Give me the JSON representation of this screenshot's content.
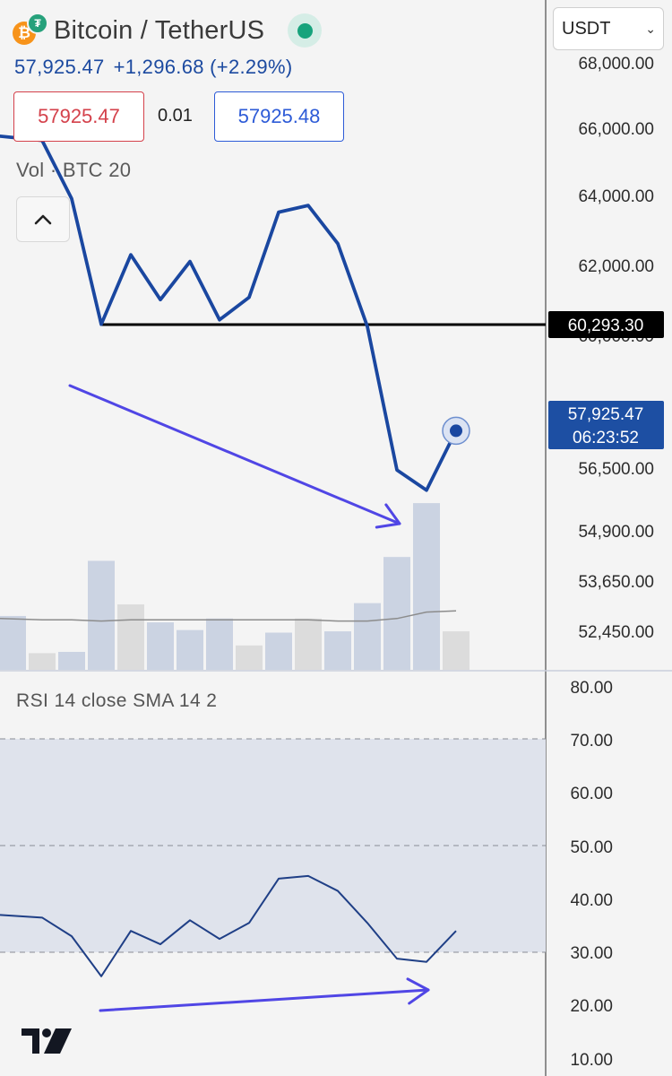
{
  "header": {
    "pair_title": "Bitcoin / TetherUS",
    "base_icon": "bitcoin-icon",
    "quote_icon": "tether-icon",
    "last_price": "57,925.47",
    "change": "+1,296.68 (+2.29%)",
    "sell_price": "57925.47",
    "spread": "0.01",
    "buy_price": "57925.48",
    "volume_label": "Vol · BTC 20",
    "currency_select": "USDT"
  },
  "rsi_label": "RSI 14 close SMA 14 2",
  "colors": {
    "price_line": "#1a47a0",
    "rsi_line": "#1f3f86",
    "arrow": "#5046e5",
    "volume_up": "#cbd3e2",
    "volume_down": "#dcdcdc",
    "rsi_band": "#dfe3ec",
    "sell": "#d4414b",
    "buy": "#2d5bd7"
  },
  "chart_data": [
    {
      "type": "line",
      "panel": "price",
      "y_ticks": [
        "68,000.00",
        "66,000.00",
        "64,000.00",
        "62,000.00",
        "60,000.00",
        "56,500.00",
        "54,900.00",
        "53,650.00",
        "52,450.00"
      ],
      "series": [
        {
          "values": [
            64500,
            64400,
            63100,
            60300,
            61850,
            60850,
            61700,
            60400,
            60900,
            62800,
            62950,
            62100,
            60250,
            57050,
            56600,
            57925.47
          ]
        }
      ],
      "horizontal_line": {
        "value": 60293.3,
        "label": "60,293.30"
      },
      "last_price_label": {
        "value": "57,925.47",
        "countdown": "06:23:52"
      }
    },
    {
      "type": "bar",
      "panel": "volume",
      "values": [
        0.42,
        0.13,
        0.14,
        0.85,
        0.51,
        0.37,
        0.31,
        0.4,
        0.19,
        0.29,
        0.4,
        0.3,
        0.52,
        0.88,
        1.3,
        0.3
      ],
      "direction": [
        "up",
        "down",
        "up",
        "up",
        "down",
        "up",
        "up",
        "up",
        "down",
        "up",
        "down",
        "up",
        "up",
        "up",
        "up",
        "down"
      ],
      "ma": [
        0.4,
        0.39,
        0.39,
        0.38,
        0.39,
        0.39,
        0.39,
        0.39,
        0.39,
        0.39,
        0.39,
        0.38,
        0.38,
        0.4,
        0.45,
        0.46
      ]
    },
    {
      "type": "line",
      "panel": "rsi",
      "y_ticks": [
        "80.00",
        "70.00",
        "60.00",
        "50.00",
        "40.00",
        "30.00",
        "20.00",
        "10.00"
      ],
      "band": [
        30,
        70
      ],
      "midline": 50,
      "ylim": [
        10,
        80
      ],
      "series": [
        {
          "values": [
            37,
            36.5,
            33,
            25.5,
            34,
            31.5,
            36,
            32.5,
            35.5,
            43.8,
            44.3,
            41.5,
            35.5,
            28.8,
            28.2,
            34
          ]
        }
      ]
    }
  ]
}
